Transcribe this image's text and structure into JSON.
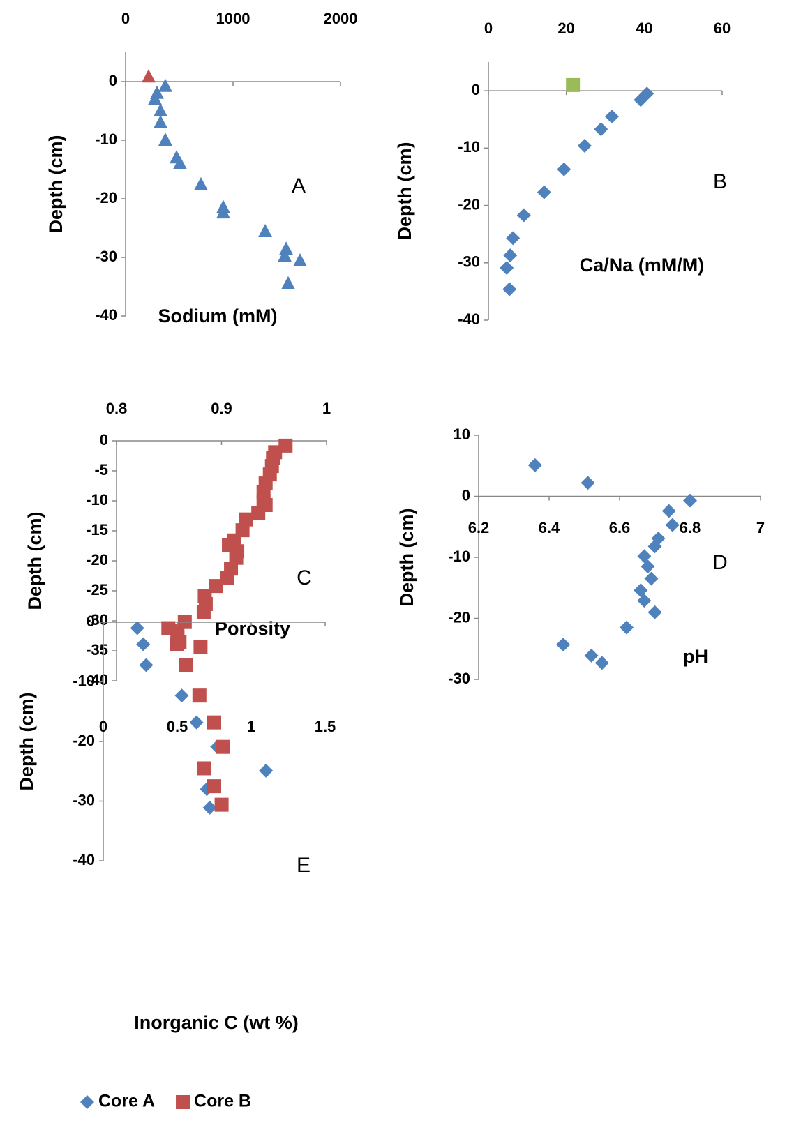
{
  "chart_data": [
    {
      "type": "scatter",
      "xlabel": "Sodium (mM)",
      "ylabel": "Depth (cm)",
      "annotation": "A",
      "xlim": [
        0,
        2000
      ],
      "xticks": [
        0,
        1000,
        2000
      ],
      "ylim": [
        -40,
        5
      ],
      "yticks": [
        0,
        -10,
        -20,
        -30,
        -40
      ],
      "series": [
        {
          "color": "#4f81bd",
          "marker": "triangle",
          "x": [
            370,
            292,
            273,
            325,
            325,
            370,
            474,
            506,
            701,
            909,
            909,
            1299,
            1494,
            1481,
            1623,
            1513
          ],
          "values": [
            -0.8,
            -2,
            -3,
            -5,
            -7,
            -10,
            -13,
            -14,
            -17.6,
            -21.5,
            -22.4,
            -25.6,
            -28.6,
            -29.8,
            -30.6,
            -34.5
          ]
        },
        {
          "color": "#c0504d",
          "marker": "triangle",
          "x": [
            214
          ],
          "values": [
            0.8
          ]
        }
      ]
    },
    {
      "type": "scatter",
      "xlabel": "Ca/Na (mM/M)",
      "ylabel": "Depth (cm)",
      "annotation": "B",
      "xlim": [
        0,
        60
      ],
      "xticks": [
        0,
        20,
        40,
        60
      ],
      "ylim": [
        -40,
        5
      ],
      "yticks": [
        0,
        -10,
        -20,
        -30,
        -40
      ],
      "series": [
        {
          "color": "#4f81bd",
          "marker": "diamond",
          "x": [
            40.7,
            39.1,
            31.7,
            28.9,
            24.7,
            19.4,
            14.3,
            9.1,
            6.3,
            5.6,
            4.7,
            5.4
          ],
          "values": [
            -0.5,
            -1.6,
            -4.5,
            -6.7,
            -9.6,
            -13.7,
            -17.7,
            -21.7,
            -25.7,
            -28.7,
            -30.9,
            -34.6
          ]
        },
        {
          "color": "#9bbb59",
          "marker": "square",
          "x": [
            21.7
          ],
          "values": [
            1.0
          ]
        }
      ]
    },
    {
      "type": "scatter",
      "xlabel": "Porosity",
      "ylabel": "Depth (cm)",
      "annotation": "C",
      "xlim": [
        0.8,
        1
      ],
      "xticks": [
        0.8,
        0.9,
        1
      ],
      "ylim": [
        -40,
        0
      ],
      "yticks": [
        0,
        -5,
        -10,
        -15,
        -20,
        -25,
        -30,
        -35,
        -40
      ],
      "series": [
        {
          "color": "#c0504d",
          "marker": "square",
          "x": [
            0.961,
            0.951,
            0.949,
            0.948,
            0.946,
            0.942,
            0.94,
            0.94,
            0.942,
            0.935,
            0.923,
            0.92,
            0.912,
            0.907,
            0.915,
            0.914,
            0.909,
            0.905,
            0.895,
            0.884,
            0.885,
            0.883,
            0.865,
            0.858,
            0.858,
            0.86,
            0.88
          ],
          "values": [
            -0.8,
            -1.9,
            -2.9,
            -4.2,
            -5.6,
            -7.1,
            -8.6,
            -10.1,
            -10.7,
            -12.0,
            -13.1,
            -14.9,
            -16.6,
            -17.4,
            -18.4,
            -19.5,
            -21.3,
            -22.9,
            -24.2,
            -25.9,
            -27.2,
            -28.5,
            -30.2,
            -31.7,
            -32.7,
            -33.5,
            -34.4
          ]
        }
      ]
    },
    {
      "type": "scatter",
      "xlabel": "pH",
      "ylabel": "Depth (cm)",
      "annotation": "D",
      "xlim": [
        6.2,
        7
      ],
      "xticks": [
        6.2,
        6.4,
        6.6,
        6.8,
        7
      ],
      "ylim": [
        -30,
        10
      ],
      "yticks": [
        10,
        0,
        -10,
        -20,
        -30
      ],
      "series": [
        {
          "color": "#4f81bd",
          "marker": "diamond",
          "x": [
            6.36,
            6.51,
            6.8,
            6.74,
            6.75,
            6.71,
            6.7,
            6.67,
            6.68,
            6.69,
            6.66,
            6.67,
            6.7,
            6.62,
            6.44,
            6.52,
            6.55
          ],
          "values": [
            5.1,
            2.2,
            -0.7,
            -2.4,
            -4.7,
            -6.9,
            -8.2,
            -9.8,
            -11.5,
            -13.5,
            -15.4,
            -17.1,
            -19.0,
            -21.5,
            -24.3,
            -26.1,
            -27.3
          ]
        }
      ]
    },
    {
      "type": "scatter",
      "xlabel": "Inorganic C (wt %)",
      "ylabel": "Depth (cm)",
      "annotation": "E",
      "xlim": [
        0,
        1.5
      ],
      "xticks": [
        0,
        0.5,
        1,
        1.5
      ],
      "ylim": [
        -40,
        0
      ],
      "yticks": [
        0,
        -10,
        -20,
        -30,
        -40
      ],
      "legend": "bottom",
      "series": [
        {
          "name": "Core A",
          "color": "#4f81bd",
          "marker": "diamond",
          "x": [
            0.23,
            0.27,
            0.29,
            0.53,
            0.63,
            0.77,
            1.1,
            0.7,
            0.72
          ],
          "values": [
            -1.0,
            -3.7,
            -7.2,
            -12.3,
            -16.8,
            -20.9,
            -24.9,
            -28.0,
            -31.1
          ]
        },
        {
          "name": "Core B",
          "color": "#c0504d",
          "marker": "square",
          "x": [
            0.44,
            0.5,
            0.56,
            0.65,
            0.75,
            0.81,
            0.68,
            0.75,
            0.8
          ],
          "values": [
            -1.0,
            -3.7,
            -7.2,
            -12.3,
            -16.8,
            -20.9,
            -24.5,
            -27.5,
            -30.6
          ]
        }
      ]
    }
  ]
}
